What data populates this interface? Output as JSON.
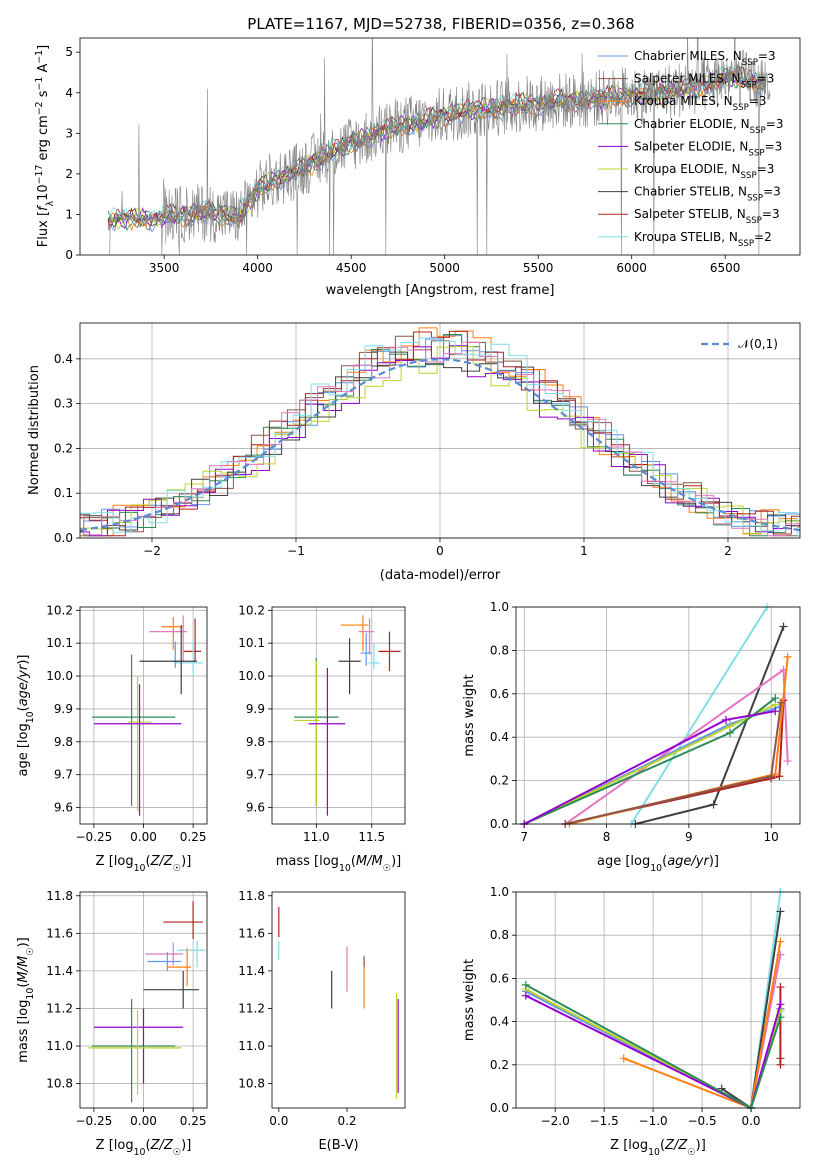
{
  "figure": {
    "title": "PLATE=1167, MJD=52738, FIBERID=0356, z=0.368"
  },
  "chart_data": [
    {
      "id": "spectrum",
      "type": "line",
      "title": "PLATE=1167, MJD=52738, FIBERID=0356, z=0.368",
      "xlabel": "wavelength [Angstrom, rest frame]",
      "ylabel": "Flux [f_λ 10^-17 erg cm^-2 s^-1 A^-1]",
      "xlim": [
        3050,
        6900
      ],
      "ylim": [
        0,
        5.35
      ],
      "xticks": [
        3500,
        4000,
        4500,
        5000,
        5500,
        6000,
        6500
      ],
      "yticks": [
        0,
        1,
        2,
        3,
        4,
        5
      ],
      "grid": false,
      "legend_position": "top-right",
      "continuum_x": [
        3200,
        3300,
        3400,
        3500,
        3600,
        3700,
        3800,
        3900,
        4000,
        4100,
        4200,
        4300,
        4400,
        4500,
        4600,
        4700,
        4800,
        4900,
        5000,
        5100,
        5200,
        5300,
        5400,
        5500,
        5600,
        5700,
        5800,
        5900,
        6000,
        6100,
        6200,
        6300,
        6400,
        6500,
        6600,
        6700
      ],
      "continuum_y": [
        0.85,
        0.9,
        0.88,
        0.92,
        1.0,
        1.05,
        1.0,
        0.95,
        1.6,
        1.9,
        2.05,
        2.3,
        2.55,
        2.75,
        2.95,
        3.1,
        3.25,
        3.3,
        3.45,
        3.55,
        3.6,
        3.65,
        3.7,
        3.75,
        3.8,
        3.8,
        3.85,
        3.9,
        3.95,
        3.95,
        4.05,
        4.1,
        4.2,
        4.4,
        4.35,
        4.25
      ],
      "series": [
        {
          "name": "Chabrier MILES, N_SSP=3",
          "color": "#6495ED"
        },
        {
          "name": "Salpeter MILES, N_SSP=3",
          "color": "#8c564b"
        },
        {
          "name": "Kroupa MILES, N_SSP=3",
          "color": "#ff7f0e"
        },
        {
          "name": "Chabrier ELODIE, N_SSP=3",
          "color": "#2e8b57"
        },
        {
          "name": "Salpeter ELODIE, N_SSP=3",
          "color": "#9400D3"
        },
        {
          "name": "Kroupa ELODIE, N_SSP=3",
          "color": "#bcd22c"
        },
        {
          "name": "Chabrier STELIB, N_SSP=3",
          "color": "#404040"
        },
        {
          "name": "Salpeter STELIB, N_SSP=3",
          "color": "#b22222"
        },
        {
          "name": "Kroupa STELIB, N_SSP=2",
          "color": "#80deea"
        }
      ],
      "data_color": "#808080"
    },
    {
      "id": "residuals",
      "type": "line",
      "xlabel": "(data-model)/error",
      "ylabel": "Normed distribution",
      "xlim": [
        -2.5,
        2.5
      ],
      "ylim": [
        0,
        0.48
      ],
      "xticks": [
        -2,
        -1,
        0,
        1,
        2
      ],
      "yticks": [
        0.0,
        0.1,
        0.2,
        0.3,
        0.4
      ],
      "grid": true,
      "legend_position": "top-right",
      "reference": {
        "name": "𝒩(0,1)",
        "color": "#5b8bd6",
        "style": "dashed"
      },
      "histogram_colors": [
        "#6495ED",
        "#8c564b",
        "#ff7f0e",
        "#2e8b57",
        "#9400D3",
        "#bcd22c",
        "#404040",
        "#b22222",
        "#80deea",
        "#e377c2"
      ]
    },
    {
      "id": "age-vs-Z",
      "type": "scatter",
      "xlabel": "Z [log10(Z/Z☉)]",
      "ylabel": "age [log10(age/yr)]",
      "xlim": [
        -0.32,
        0.32
      ],
      "ylim": [
        9.55,
        10.21
      ],
      "xticks": [
        -0.25,
        0.0,
        0.25
      ],
      "yticks": [
        9.6,
        9.7,
        9.8,
        9.9,
        10.0,
        10.1,
        10.2
      ],
      "grid": true,
      "points": [
        {
          "x": 0.15,
          "y": 10.15,
          "xerr": [
            0.06,
            0.05
          ],
          "yerr": [
            0.07,
            0.03
          ],
          "color": "#ff7f0e"
        },
        {
          "x": 0.26,
          "y": 10.075,
          "xerr": [
            0.06,
            0.03
          ],
          "yerr": [
            0.03,
            0.1
          ],
          "color": "#b22222"
        },
        {
          "x": 0.2,
          "y": 10.135,
          "xerr": [
            0.17,
            0.02
          ],
          "yerr": [
            0.09,
            0.05
          ],
          "color": "#e377c2"
        },
        {
          "x": 0.25,
          "y": 10.04,
          "xerr": [
            0.09,
            0.05
          ],
          "yerr": [
            0.04,
            0.07
          ],
          "color": "#80deea"
        },
        {
          "x": 0.16,
          "y": 10.045,
          "xerr": [
            0.01,
            0.04
          ],
          "yerr": [
            0.02,
            0.06
          ],
          "color": "#6495ED"
        },
        {
          "x": 0.19,
          "y": 10.045,
          "xerr": [
            0.21,
            0.08
          ],
          "yerr": [
            0.1,
            0.11
          ],
          "color": "#404040"
        },
        {
          "x": -0.06,
          "y": 9.875,
          "xerr": [
            0.2,
            0.22
          ],
          "yerr": [
            0.27,
            0.19
          ],
          "color": "#2e8b57"
        },
        {
          "x": -0.03,
          "y": 9.86,
          "xerr": [
            0.05,
            0.07
          ],
          "yerr": [
            0.27,
            0.14
          ],
          "color": "#bcd22c"
        },
        {
          "x": -0.02,
          "y": 9.855,
          "xerr": [
            0.23,
            0.21
          ],
          "yerr": [
            0.28,
            0.12
          ],
          "color": "#9400D3"
        }
      ]
    },
    {
      "id": "age-vs-mass",
      "type": "scatter",
      "xlabel": "mass [log10(M/M☉)]",
      "ylabel": "",
      "xlim": [
        10.6,
        11.8
      ],
      "ylim": [
        9.55,
        10.21
      ],
      "xticks": [
        11.0,
        11.5
      ],
      "yticks": [
        9.6,
        9.7,
        9.8,
        9.9,
        10.0,
        10.1,
        10.2
      ],
      "grid": true,
      "points": [
        {
          "x": 11.42,
          "y": 10.155,
          "xerr": [
            0.2,
            0.05
          ],
          "yerr": [
            0.08,
            0.03
          ],
          "color": "#ff7f0e"
        },
        {
          "x": 11.66,
          "y": 10.075,
          "xerr": [
            0.1,
            0.1
          ],
          "yerr": [
            0.06,
            0.06
          ],
          "color": "#b22222"
        },
        {
          "x": 11.48,
          "y": 10.135,
          "xerr": [
            0.1,
            0.04
          ],
          "yerr": [
            0.07,
            0.04
          ],
          "color": "#e377c2"
        },
        {
          "x": 11.52,
          "y": 10.04,
          "xerr": [
            0.05,
            0.05
          ],
          "yerr": [
            0.02,
            0.06
          ],
          "color": "#80deea"
        },
        {
          "x": 11.45,
          "y": 10.07,
          "xerr": [
            0.05,
            0.05
          ],
          "yerr": [
            0.04,
            0.06
          ],
          "color": "#6495ED"
        },
        {
          "x": 11.3,
          "y": 10.045,
          "xerr": [
            0.1,
            0.1
          ],
          "yerr": [
            0.1,
            0.07
          ],
          "color": "#404040"
        },
        {
          "x": 11.0,
          "y": 9.875,
          "xerr": [
            0.2,
            0.2
          ],
          "yerr": [
            0.27,
            0.18
          ],
          "color": "#2e8b57"
        },
        {
          "x": 11.0,
          "y": 9.865,
          "xerr": [
            0.2,
            0.03
          ],
          "yerr": [
            0.26,
            0.18
          ],
          "color": "#bcd22c"
        },
        {
          "x": 11.1,
          "y": 9.855,
          "xerr": [
            0.17,
            0.16
          ],
          "yerr": [
            0.28,
            0.17
          ],
          "color": "#9400D3"
        }
      ]
    },
    {
      "id": "weight-vs-age",
      "type": "line",
      "xlabel": "age [log10(age/yr)]",
      "ylabel": "mass weight",
      "xlim": [
        6.9,
        10.35
      ],
      "ylim": [
        0,
        1.0
      ],
      "xticks": [
        7,
        8,
        9,
        10
      ],
      "yticks": [
        0.0,
        0.2,
        0.4,
        0.6,
        0.8,
        1.0
      ],
      "grid": true,
      "series": [
        {
          "color": "#80deea",
          "x": [
            8.3,
            9.95
          ],
          "y": [
            0.0,
            1.0
          ]
        },
        {
          "color": "#404040",
          "x": [
            8.35,
            9.3,
            10.15
          ],
          "y": [
            0.0,
            0.09,
            0.91
          ]
        },
        {
          "color": "#e377c2",
          "x": [
            7.5,
            10.15,
            10.2
          ],
          "y": [
            0.0,
            0.71,
            0.29
          ]
        },
        {
          "color": "#6495ED",
          "x": [
            7.0,
            9.5,
            10.1
          ],
          "y": [
            0.0,
            0.46,
            0.54
          ]
        },
        {
          "color": "#bcd22c",
          "x": [
            7.0,
            9.5,
            10.05
          ],
          "y": [
            0.0,
            0.45,
            0.55
          ]
        },
        {
          "color": "#2e8b57",
          "x": [
            7.0,
            9.5,
            10.05
          ],
          "y": [
            0.0,
            0.42,
            0.58
          ]
        },
        {
          "color": "#9400D3",
          "x": [
            7.0,
            9.45,
            10.05
          ],
          "y": [
            0.0,
            0.48,
            0.52
          ]
        },
        {
          "color": "#b22222",
          "x": [
            7.5,
            10.0,
            10.1,
            10.15
          ],
          "y": [
            0.0,
            0.21,
            0.22,
            0.57
          ]
        },
        {
          "color": "#ff7f0e",
          "x": [
            7.55,
            10.05,
            10.2
          ],
          "y": [
            0.0,
            0.23,
            0.77
          ]
        },
        {
          "color": "#8c564b",
          "x": [
            7.5,
            10.0,
            10.12
          ],
          "y": [
            0.0,
            0.22,
            0.56
          ]
        }
      ]
    },
    {
      "id": "mass-vs-Z",
      "type": "scatter",
      "xlabel": "Z [log10(Z/Z☉)]",
      "ylabel": "mass [log10(M/M☉)]",
      "xlim": [
        -0.32,
        0.32
      ],
      "ylim": [
        10.67,
        11.82
      ],
      "xticks": [
        -0.25,
        0.0,
        0.25
      ],
      "yticks": [
        10.8,
        11.0,
        11.2,
        11.4,
        11.6,
        11.8
      ],
      "grid": true,
      "points": [
        {
          "x": 0.25,
          "y": 11.66,
          "xerr": [
            0.15,
            0.05
          ],
          "yerr": [
            0.09,
            0.11
          ],
          "color": "#b22222"
        },
        {
          "x": 0.27,
          "y": 11.51,
          "xerr": [
            0.1,
            0.04
          ],
          "yerr": [
            0.09,
            0.05
          ],
          "color": "#80deea"
        },
        {
          "x": 0.15,
          "y": 11.49,
          "xerr": [
            0.14,
            0.05
          ],
          "yerr": [
            0.06,
            0.06
          ],
          "color": "#e377c2"
        },
        {
          "x": 0.12,
          "y": 11.45,
          "xerr": [
            0.1,
            0.07
          ],
          "yerr": [
            0.05,
            0.05
          ],
          "color": "#6495ED"
        },
        {
          "x": 0.22,
          "y": 11.42,
          "xerr": [
            0.1,
            0.02
          ],
          "yerr": [
            0.1,
            0.1
          ],
          "color": "#ff7f0e"
        },
        {
          "x": 0.2,
          "y": 11.3,
          "xerr": [
            0.2,
            0.08
          ],
          "yerr": [
            0.1,
            0.1
          ],
          "color": "#404040"
        },
        {
          "x": 0.0,
          "y": 11.1,
          "xerr": [
            0.25,
            0.2
          ],
          "yerr": [
            0.3,
            0.1
          ],
          "color": "#9400D3"
        },
        {
          "x": -0.06,
          "y": 11.0,
          "xerr": [
            0.2,
            0.22
          ],
          "yerr": [
            0.3,
            0.25
          ],
          "color": "#2e8b57"
        },
        {
          "x": -0.03,
          "y": 10.99,
          "xerr": [
            0.25,
            0.22
          ],
          "yerr": [
            0.25,
            0.2
          ],
          "color": "#bcd22c"
        }
      ]
    },
    {
      "id": "mass-vs-EBV",
      "type": "scatter",
      "xlabel": "E(B-V)",
      "ylabel": "",
      "xlim": [
        -0.02,
        0.37
      ],
      "ylim": [
        10.67,
        11.82
      ],
      "xticks": [
        0.0,
        0.2
      ],
      "yticks": [
        10.8,
        11.0,
        11.2,
        11.4,
        11.6,
        11.8
      ],
      "grid": false,
      "points": [
        {
          "x": 0.0,
          "y": 11.66,
          "yerr": [
            0.08,
            0.08
          ],
          "color": "#b22222"
        },
        {
          "x": 0.0,
          "y": 11.51,
          "yerr": [
            0.05,
            0.05
          ],
          "color": "#80deea"
        },
        {
          "x": 0.2,
          "y": 11.41,
          "yerr": [
            0.12,
            0.12
          ],
          "color": "#e377c2"
        },
        {
          "x": 0.25,
          "y": 11.33,
          "yerr": [
            0.13,
            0.13
          ],
          "color": "#ff7f0e"
        },
        {
          "x": 0.25,
          "y": 11.45,
          "yerr": [
            0.03,
            0.03
          ],
          "color": "#8c564b"
        },
        {
          "x": 0.155,
          "y": 11.3,
          "yerr": [
            0.1,
            0.1
          ],
          "color": "#404040"
        },
        {
          "x": 0.35,
          "y": 11.0,
          "yerr": [
            0.25,
            0.25
          ],
          "color": "#9400D3"
        },
        {
          "x": 0.345,
          "y": 11.0,
          "yerr": [
            0.28,
            0.28
          ],
          "color": "#bcd22c"
        }
      ]
    },
    {
      "id": "weight-vs-Z",
      "type": "line",
      "xlabel": "Z [log10(Z/Z☉)]",
      "ylabel": "mass weight",
      "xlim": [
        -2.4,
        0.5
      ],
      "ylim": [
        0,
        1.0
      ],
      "xticks": [
        -2.0,
        -1.5,
        -1.0,
        -0.5,
        0.0
      ],
      "yticks": [
        0.0,
        0.2,
        0.4,
        0.6,
        0.8,
        1.0
      ],
      "grid": true,
      "series": [
        {
          "color": "#80deea",
          "x": [
            0.0,
            0.3
          ],
          "y": [
            0.0,
            1.0
          ]
        },
        {
          "color": "#404040",
          "x": [
            -0.3,
            0.0,
            0.3
          ],
          "y": [
            0.09,
            0.0,
            0.91
          ]
        },
        {
          "color": "#e377c2",
          "x": [
            0.0,
            0.3
          ],
          "y": [
            0.0,
            0.71
          ]
        },
        {
          "color": "#ff7f0e",
          "x": [
            -1.3,
            0.0,
            0.3
          ],
          "y": [
            0.23,
            0.0,
            0.77
          ]
        },
        {
          "color": "#b22222",
          "x": [
            0.3,
            0.3,
            0.3,
            0.3
          ],
          "y": [
            0.2,
            0.23,
            0.46,
            0.56
          ]
        },
        {
          "color": "#6495ED",
          "x": [
            -2.3,
            0.0,
            0.3
          ],
          "y": [
            0.54,
            0.0,
            0.46
          ]
        },
        {
          "color": "#bcd22c",
          "x": [
            -2.3,
            0.0,
            0.3
          ],
          "y": [
            0.55,
            0.0,
            0.45
          ]
        },
        {
          "color": "#9400D3",
          "x": [
            -2.3,
            0.0,
            0.3
          ],
          "y": [
            0.52,
            0.0,
            0.48
          ]
        },
        {
          "color": "#2e8b57",
          "x": [
            -2.3,
            0.0,
            0.3
          ],
          "y": [
            0.57,
            0.0,
            0.42
          ]
        }
      ]
    }
  ]
}
